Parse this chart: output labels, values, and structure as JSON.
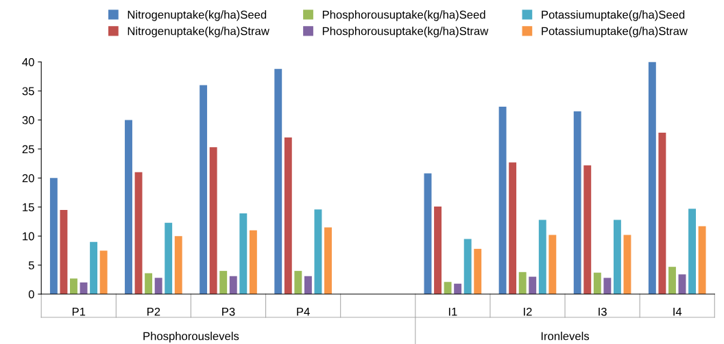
{
  "chart_data": {
    "type": "bar",
    "categories": [
      "P1",
      "P2",
      "P3",
      "P4",
      null,
      "I1",
      "I2",
      "I3",
      "I4"
    ],
    "series": [
      {
        "name": "Nitrogenuptake(kg/ha)Seed",
        "color": "#4f81bd",
        "values": [
          20,
          30,
          36,
          38.8,
          null,
          20.8,
          32.3,
          31.5,
          40
        ]
      },
      {
        "name": "Nitrogenuptake(kg/ha)Straw",
        "color": "#c0504d",
        "values": [
          14.5,
          21,
          25.3,
          27,
          null,
          15.1,
          22.7,
          22.2,
          27.8
        ]
      },
      {
        "name": "Phosphorousuptake(kg/ha)Seed",
        "color": "#9bbb59",
        "values": [
          2.7,
          3.6,
          4,
          4,
          null,
          2.1,
          3.8,
          3.7,
          4.7
        ]
      },
      {
        "name": "Phosphorousuptake(kg/ha)Straw",
        "color": "#8064a2",
        "values": [
          2,
          2.8,
          3.1,
          3.1,
          null,
          1.8,
          3,
          2.8,
          3.4
        ]
      },
      {
        "name": "Potassiumuptake(g/ha)Seed",
        "color": "#4bacc6",
        "values": [
          9,
          12.3,
          13.9,
          14.6,
          null,
          9.5,
          12.8,
          12.8,
          14.7
        ]
      },
      {
        "name": "Potassiumuptake(g/ha)Straw",
        "color": "#f79646",
        "values": [
          7.5,
          10,
          11,
          11.5,
          null,
          7.8,
          10.2,
          10.2,
          11.7
        ]
      }
    ],
    "ylim": [
      0,
      40
    ],
    "yticks": [
      0,
      5,
      10,
      15,
      20,
      25,
      30,
      35,
      40
    ],
    "grid": false,
    "legend": "top",
    "annotations": [
      "Phosphorouslevels",
      "Ironlevels"
    ]
  }
}
